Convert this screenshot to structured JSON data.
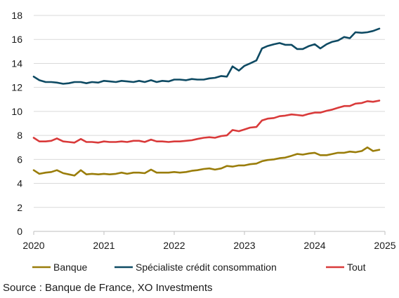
{
  "source": "Source : Banque de France, XO Investments",
  "chart_data": {
    "type": "line",
    "title": "",
    "xlabel": "",
    "ylabel": "",
    "xlim": [
      2020,
      2025
    ],
    "ylim": [
      0,
      18
    ],
    "y_ticks": [
      0,
      2,
      4,
      6,
      8,
      10,
      12,
      14,
      16,
      18
    ],
    "x_ticks": [
      2020,
      2021,
      2022,
      2023,
      2024,
      2025
    ],
    "x_tick_labels": [
      "2020",
      "2021",
      "2022",
      "2023",
      "2024",
      "2025"
    ],
    "grid": "horizontal",
    "legend_position": "bottom",
    "x": [
      2020.0,
      2020.08,
      2020.17,
      2020.25,
      2020.33,
      2020.42,
      2020.5,
      2020.58,
      2020.67,
      2020.75,
      2020.83,
      2020.92,
      2021.0,
      2021.08,
      2021.17,
      2021.25,
      2021.33,
      2021.42,
      2021.5,
      2021.58,
      2021.67,
      2021.75,
      2021.83,
      2021.92,
      2022.0,
      2022.08,
      2022.17,
      2022.25,
      2022.33,
      2022.42,
      2022.5,
      2022.58,
      2022.67,
      2022.75,
      2022.83,
      2022.92,
      2023.0,
      2023.08,
      2023.17,
      2023.25,
      2023.33,
      2023.42,
      2023.5,
      2023.58,
      2023.67,
      2023.75,
      2023.83,
      2023.92,
      2024.0,
      2024.08,
      2024.17,
      2024.25,
      2024.33,
      2024.42,
      2024.5,
      2024.58,
      2024.67,
      2024.75,
      2024.83,
      2024.92
    ],
    "series": [
      {
        "name": "Banque",
        "color": "#9a7d0a",
        "values": [
          5.1,
          4.8,
          4.9,
          4.95,
          5.1,
          4.85,
          4.75,
          4.65,
          5.1,
          4.75,
          4.8,
          4.75,
          4.8,
          4.75,
          4.8,
          4.9,
          4.8,
          4.9,
          4.9,
          4.85,
          5.15,
          4.9,
          4.9,
          4.9,
          4.95,
          4.9,
          4.95,
          5.05,
          5.1,
          5.2,
          5.25,
          5.15,
          5.25,
          5.45,
          5.4,
          5.5,
          5.5,
          5.6,
          5.65,
          5.85,
          5.95,
          6.0,
          6.1,
          6.15,
          6.3,
          6.45,
          6.4,
          6.5,
          6.55,
          6.35,
          6.35,
          6.45,
          6.55,
          6.55,
          6.65,
          6.6,
          6.7,
          7.0,
          6.7,
          6.8
        ]
      },
      {
        "name": "Spécialiste crédit consommation",
        "color": "#0e4a63",
        "values": [
          12.9,
          12.6,
          12.45,
          12.45,
          12.4,
          12.3,
          12.35,
          12.45,
          12.45,
          12.35,
          12.45,
          12.4,
          12.55,
          12.5,
          12.45,
          12.55,
          12.5,
          12.45,
          12.55,
          12.45,
          12.6,
          12.45,
          12.55,
          12.5,
          12.65,
          12.65,
          12.6,
          12.7,
          12.65,
          12.65,
          12.75,
          12.8,
          12.95,
          12.9,
          13.75,
          13.4,
          13.8,
          14.0,
          14.25,
          15.25,
          15.45,
          15.6,
          15.7,
          15.55,
          15.55,
          15.2,
          15.2,
          15.45,
          15.6,
          15.25,
          15.6,
          15.8,
          15.9,
          16.2,
          16.1,
          16.6,
          16.55,
          16.6,
          16.7,
          16.9
        ]
      },
      {
        "name": "Tout",
        "color": "#d93a3a",
        "values": [
          7.8,
          7.5,
          7.5,
          7.55,
          7.75,
          7.5,
          7.45,
          7.4,
          7.7,
          7.45,
          7.45,
          7.4,
          7.5,
          7.45,
          7.45,
          7.5,
          7.45,
          7.55,
          7.55,
          7.45,
          7.65,
          7.5,
          7.5,
          7.45,
          7.5,
          7.5,
          7.55,
          7.6,
          7.7,
          7.8,
          7.85,
          7.8,
          7.95,
          8.0,
          8.45,
          8.35,
          8.5,
          8.65,
          8.7,
          9.25,
          9.4,
          9.45,
          9.6,
          9.65,
          9.75,
          9.7,
          9.65,
          9.8,
          9.9,
          9.9,
          10.05,
          10.15,
          10.3,
          10.45,
          10.45,
          10.65,
          10.7,
          10.85,
          10.8,
          10.9
        ]
      }
    ]
  }
}
